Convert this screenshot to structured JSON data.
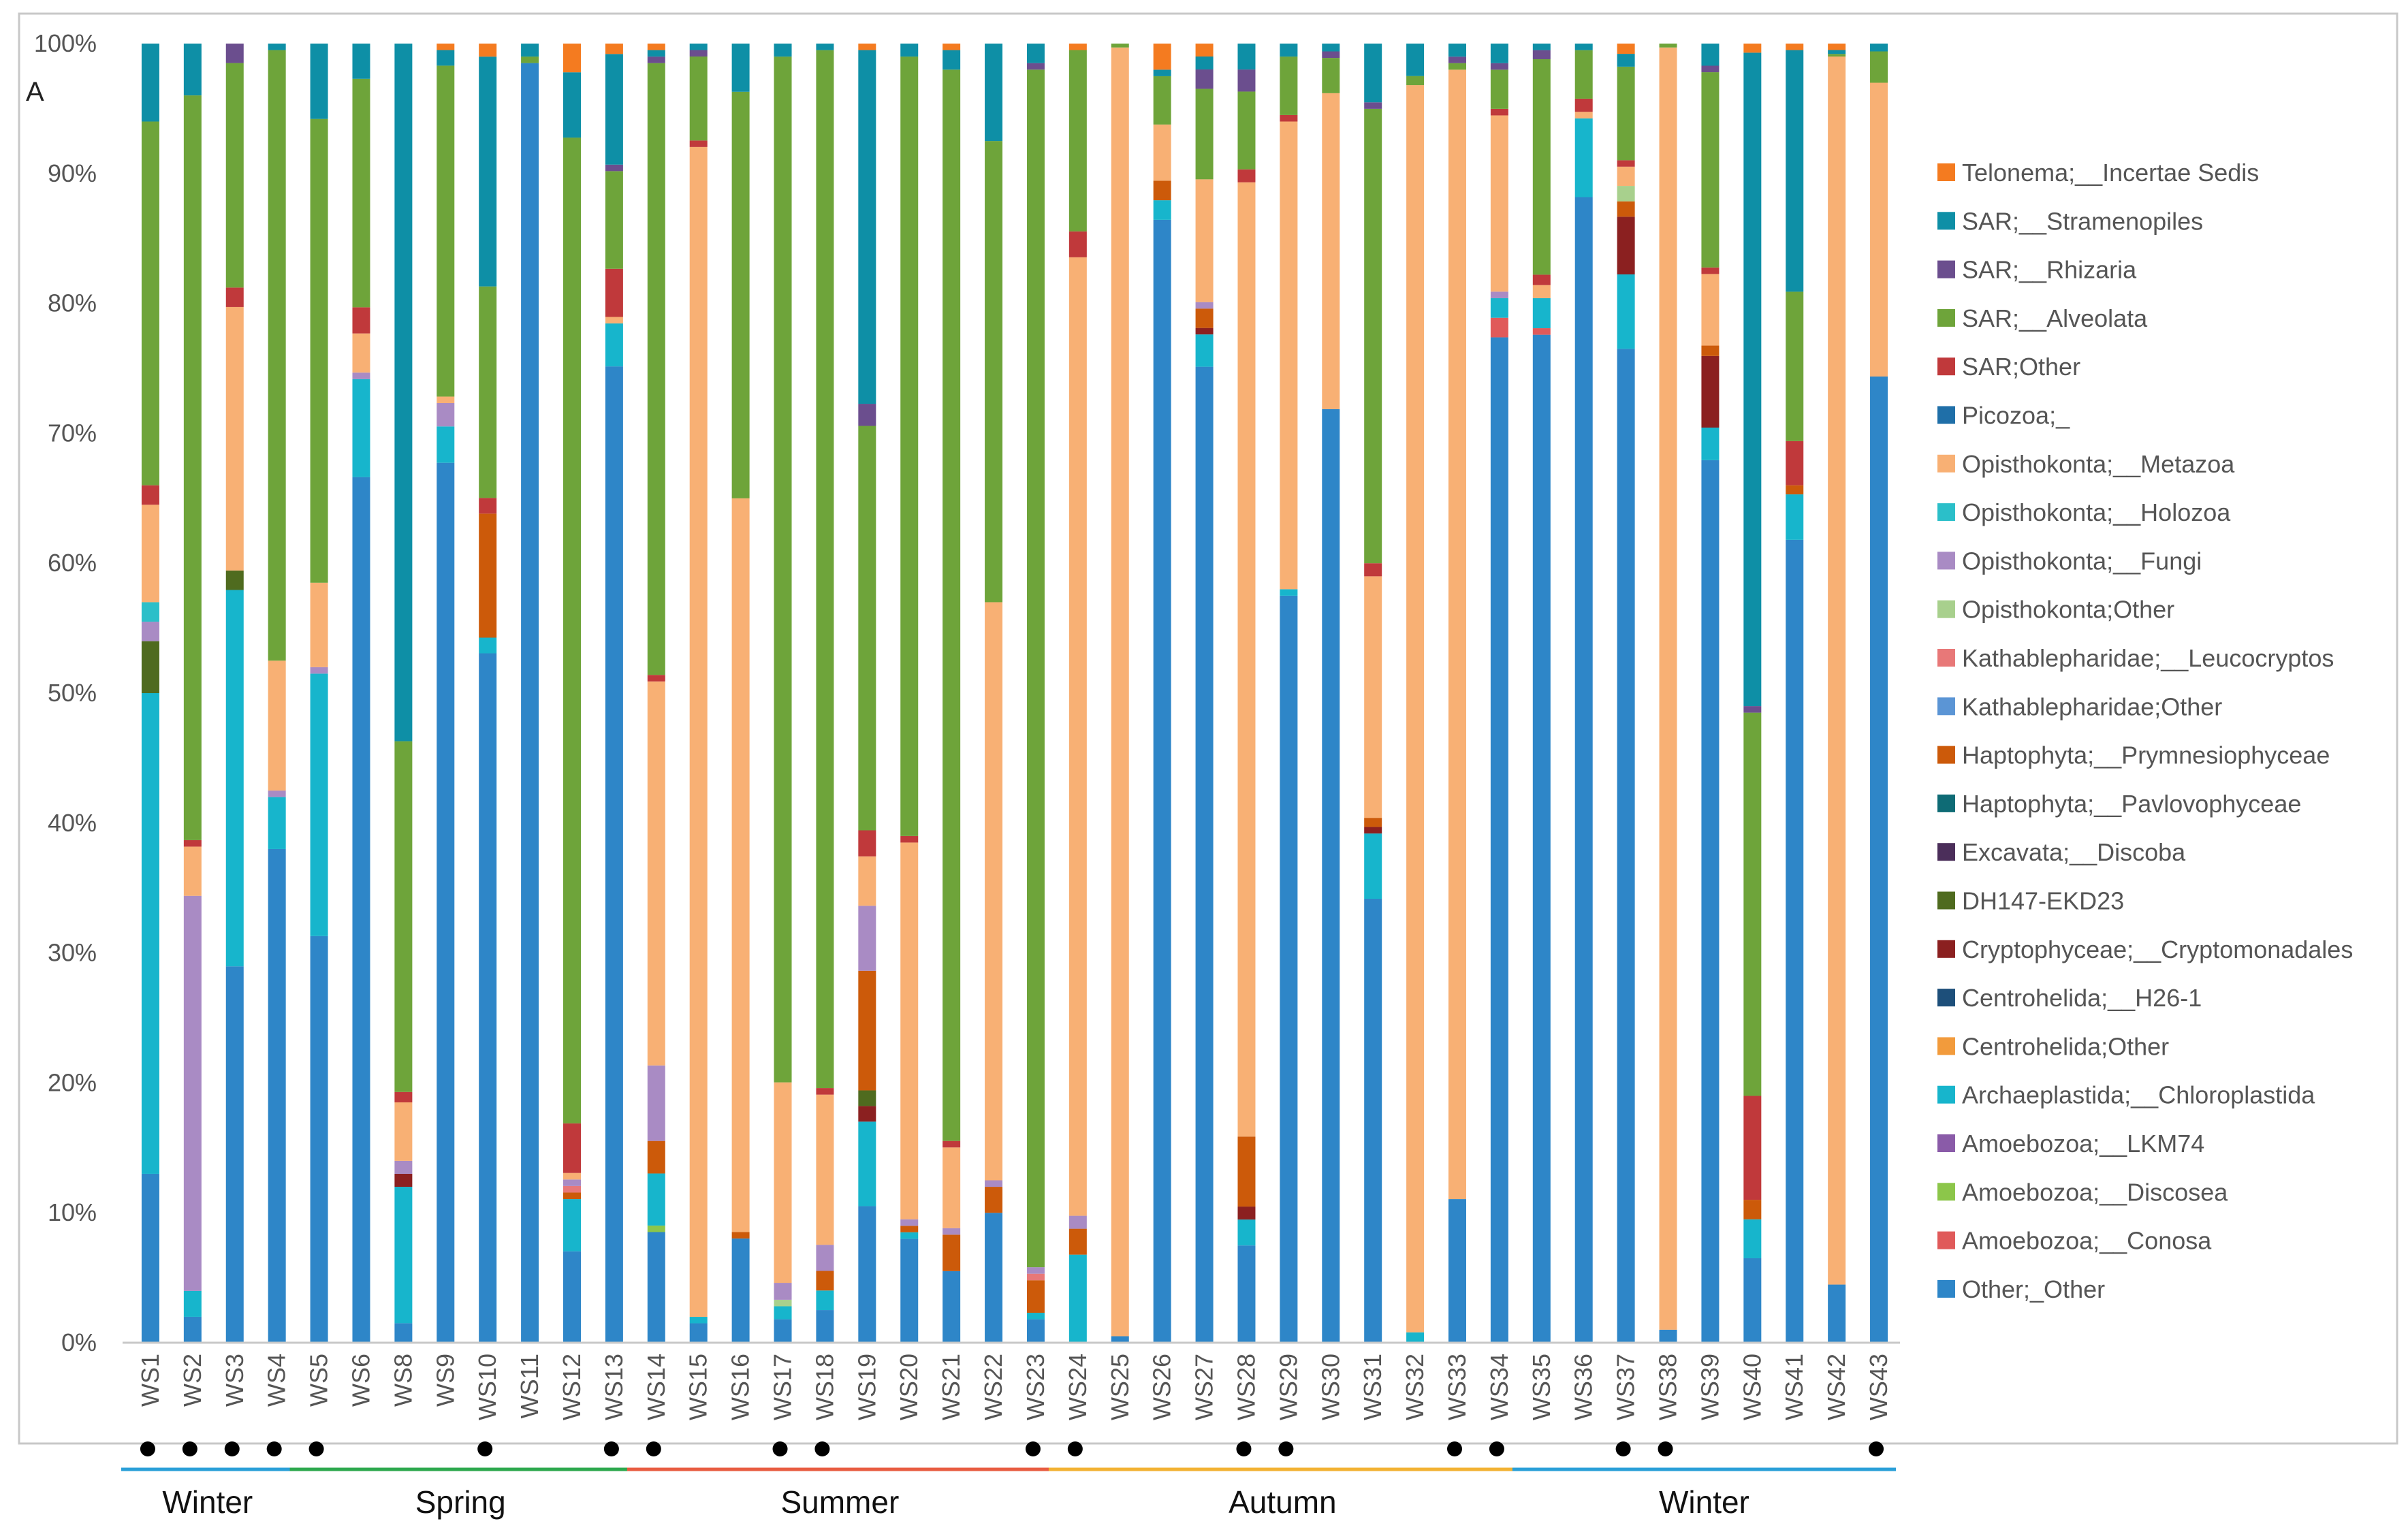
{
  "chart_data": {
    "type": "bar",
    "stacked": true,
    "percent": true,
    "panel_label": "A",
    "ylim": [
      0,
      100
    ],
    "y_ticks": [
      "0%",
      "10%",
      "20%",
      "30%",
      "40%",
      "50%",
      "60%",
      "70%",
      "80%",
      "90%",
      "100%"
    ],
    "legend_position": "right",
    "categories": [
      "WS1",
      "WS2",
      "WS3",
      "WS4",
      "WS5",
      "WS6",
      "WS8",
      "WS9",
      "WS10",
      "WS11",
      "WS12",
      "WS13",
      "WS14",
      "WS15",
      "WS16",
      "WS17",
      "WS18",
      "WS19",
      "WS20",
      "WS21",
      "WS22",
      "WS23",
      "WS24",
      "WS25",
      "WS26",
      "WS27",
      "WS28",
      "WS29",
      "WS30",
      "WS31",
      "WS32",
      "WS33",
      "WS34",
      "WS35",
      "WS36",
      "WS37",
      "WS38",
      "WS39",
      "WS40",
      "WS41",
      "WS42",
      "WS43"
    ],
    "series": [
      {
        "name": "Other;_Other",
        "color": "#2E86C8",
        "values": [
          13,
          2,
          29,
          38,
          31.3,
          66.3,
          1.5,
          67.8,
          52.8,
          98.5,
          7,
          75,
          8.5,
          1.5,
          8,
          1.8,
          2.5,
          10.5,
          8,
          5.5,
          10,
          1.8,
          0,
          0.5,
          86,
          75.5,
          7.5,
          57.5,
          71.5,
          34,
          0,
          11,
          77,
          77.2,
          87.3,
          77.5,
          1,
          67.8,
          6.5,
          61.8,
          4.5,
          74
        ]
      },
      {
        "name": "Amoebozoa;_Conosa",
        "color": "#E05A5A",
        "values": [
          0,
          0,
          0,
          0,
          0,
          0,
          0,
          0,
          0,
          0,
          0,
          0,
          0,
          0,
          0,
          0,
          0,
          0,
          0,
          0,
          0,
          0,
          0,
          0,
          0,
          0,
          0,
          0,
          0,
          0,
          0,
          0,
          1.5,
          0.5,
          0,
          0,
          0,
          0,
          0,
          0,
          0,
          0
        ]
      },
      {
        "name": "Amoebozoa;_Discosea",
        "color": "#8CC64A",
        "values": [
          0,
          0,
          0,
          0,
          0,
          0,
          0,
          0,
          0,
          0,
          0,
          0,
          0.5,
          0,
          0,
          0,
          0,
          0,
          0,
          0,
          0,
          0,
          0,
          0,
          0,
          0,
          0,
          0,
          0,
          0,
          0,
          0,
          0,
          0,
          0,
          0,
          0,
          0,
          0,
          0,
          0,
          0
        ]
      },
      {
        "name": "Amoebozoa;_LKM74",
        "color": "#8A5BA8",
        "values": [
          0,
          0,
          0,
          0,
          0,
          0,
          0,
          0,
          0,
          0,
          0,
          0,
          0,
          0,
          0,
          0,
          0,
          0,
          0,
          0,
          0,
          0,
          0,
          0,
          0,
          0,
          0,
          0,
          0,
          0,
          0,
          0,
          0,
          0,
          0,
          0,
          0,
          0,
          0,
          0,
          0,
          0
        ]
      },
      {
        "name": "Archaeplastida;_Chloroplastida",
        "color": "#17B5CC",
        "values": [
          37,
          2,
          29,
          4,
          20.2,
          7.5,
          10.5,
          2.8,
          1.2,
          0,
          4,
          3.3,
          4,
          0.5,
          0,
          1,
          1.5,
          6.5,
          0.5,
          0,
          0,
          0.5,
          6.8,
          0,
          1.5,
          2.5,
          2,
          0.5,
          0,
          5,
          0.8,
          0,
          1.5,
          2.3,
          6,
          5.8,
          0,
          2.5,
          3,
          3.5,
          0,
          0
        ]
      },
      {
        "name": "Centrohelida;Other",
        "color": "#F29B3C",
        "values": [
          0,
          0,
          0,
          0,
          0,
          0,
          0,
          0,
          0,
          0,
          0,
          0,
          0,
          0,
          0,
          0,
          0,
          0,
          0,
          0,
          0,
          0,
          0,
          0,
          0,
          0,
          0,
          0,
          0,
          0,
          0,
          0,
          0,
          0,
          0,
          0,
          0,
          0,
          0,
          0,
          0,
          0
        ]
      },
      {
        "name": "Centrohelida;_H26-1",
        "color": "#1D4F7A",
        "values": [
          0,
          0,
          0,
          0,
          0,
          0,
          0,
          0,
          0,
          0,
          0,
          0,
          0,
          0,
          0,
          0,
          0,
          0,
          0,
          0,
          0,
          0,
          0,
          0,
          0,
          0,
          0,
          0,
          0,
          0,
          0,
          0,
          0,
          0,
          0,
          0,
          0,
          0,
          0,
          0,
          0,
          0
        ]
      },
      {
        "name": "Cryptophyceae;_Cryptomonadales",
        "color": "#8B2020",
        "values": [
          0,
          0,
          0,
          0,
          0,
          0,
          1,
          0,
          0,
          0,
          0,
          0,
          0,
          0,
          0,
          0,
          0,
          1.2,
          0,
          0,
          0,
          0,
          0,
          0,
          0,
          0.5,
          1,
          0,
          0,
          0.5,
          0,
          0,
          0,
          0,
          0,
          4.5,
          0,
          5.5,
          0,
          0,
          0,
          0
        ]
      },
      {
        "name": "DH147-EKD23",
        "color": "#4F6B1F",
        "values": [
          4,
          0,
          1.5,
          0,
          0,
          0,
          0,
          0,
          0,
          0,
          0,
          0,
          0,
          0,
          0,
          0,
          0,
          1.2,
          0,
          0,
          0,
          0,
          0,
          0,
          0,
          0,
          0,
          0,
          0,
          0,
          0,
          0,
          0,
          0,
          0,
          0,
          0,
          0,
          0,
          0,
          0,
          0
        ]
      },
      {
        "name": "Excavata;_Discoba",
        "color": "#4B2E5A",
        "values": [
          0,
          0,
          0,
          0,
          0,
          0,
          0,
          0,
          0,
          0,
          0,
          0,
          0,
          0,
          0,
          0,
          0,
          0,
          0,
          0,
          0,
          0,
          0,
          0,
          0,
          0,
          0,
          0,
          0,
          0,
          0,
          0,
          0,
          0,
          0,
          0,
          0,
          0,
          0,
          0,
          0,
          0
        ]
      },
      {
        "name": "Haptophyta;_Pavlovophyceae",
        "color": "#0E6B75",
        "values": [
          0,
          0,
          0,
          0,
          0,
          0,
          0,
          0,
          0,
          0,
          0,
          0,
          0,
          0,
          0,
          0,
          0,
          0,
          0,
          0,
          0,
          0,
          0,
          0,
          0,
          0,
          0,
          0,
          0,
          0,
          0,
          0,
          0,
          0,
          0,
          0,
          0,
          0,
          0,
          0,
          0,
          0
        ]
      },
      {
        "name": "Haptophyta;_Prymnesiophyceae",
        "color": "#CC5A0A",
        "values": [
          0,
          0,
          0,
          0,
          0,
          0,
          0,
          0,
          9.5,
          0,
          0.5,
          0,
          2.5,
          0,
          0.5,
          0,
          1.5,
          9.2,
          0.5,
          2.8,
          2,
          2.5,
          2,
          0,
          1.5,
          1.5,
          5.4,
          0,
          0,
          0.7,
          0,
          0,
          0,
          0,
          0,
          1.2,
          0,
          0.8,
          1.5,
          0.7,
          0,
          0
        ]
      },
      {
        "name": "Kathablepharidae;Other",
        "color": "#5B95D5",
        "values": [
          0,
          0,
          0,
          0,
          0,
          0,
          0,
          0,
          0,
          0,
          0,
          0,
          0,
          0,
          0,
          0,
          0,
          0,
          0,
          0,
          0,
          0,
          0,
          0,
          0,
          0,
          0,
          0,
          0,
          0,
          0,
          0,
          0,
          0,
          0,
          0,
          0,
          0,
          0,
          0,
          0,
          0
        ]
      },
      {
        "name": "Kathablepharidae;_Leucocryptos",
        "color": "#E87878",
        "values": [
          0,
          0,
          0,
          0,
          0,
          0,
          0,
          0,
          0,
          0,
          0.5,
          0,
          0,
          0,
          0,
          0,
          0,
          0,
          0,
          0,
          0,
          0.5,
          0,
          0,
          0,
          0,
          0,
          0,
          0,
          0,
          0,
          0,
          0,
          0,
          0,
          0,
          0,
          0,
          0,
          0,
          0,
          0
        ]
      },
      {
        "name": "Opisthokonta;Other",
        "color": "#A8D08D",
        "values": [
          0,
          0,
          0,
          0,
          0,
          0,
          0,
          0,
          0,
          0,
          0,
          0,
          0,
          0,
          0,
          0.5,
          0,
          0,
          0,
          0,
          0,
          0,
          0,
          0,
          0,
          0,
          0,
          0,
          0,
          0,
          0,
          0,
          0,
          0,
          0,
          1.2,
          0,
          0,
          0,
          0,
          0,
          0
        ]
      },
      {
        "name": "Opisthokonta;_Fungi",
        "color": "#A98BC4",
        "values": [
          1.5,
          30.5,
          0,
          0.5,
          0.5,
          0.5,
          1,
          1.8,
          0,
          0,
          0.5,
          0,
          5.8,
          0,
          0,
          1.3,
          2,
          5,
          0.5,
          0.5,
          0.5,
          0.5,
          1,
          0,
          0,
          0.5,
          0,
          0,
          0,
          0,
          0,
          0,
          0.5,
          0,
          0,
          0,
          0,
          0,
          0,
          0,
          0,
          0
        ]
      },
      {
        "name": "Opisthokonta;_Holozoa",
        "color": "#2BBFC9",
        "values": [
          1.5,
          0,
          0,
          0,
          0,
          0,
          0,
          0,
          0,
          0,
          0,
          0,
          0,
          0,
          0,
          0,
          0,
          0,
          0,
          0,
          0,
          0,
          0,
          0,
          0,
          0,
          0,
          0,
          0,
          0,
          0,
          0,
          0,
          0,
          0,
          0,
          0,
          0,
          0,
          0,
          0,
          0
        ]
      },
      {
        "name": "Opisthokonta;_Metazoa",
        "color": "#F8B074",
        "values": [
          7.5,
          3.8,
          20.3,
          10,
          6.5,
          3,
          4.5,
          0.5,
          0,
          0,
          0.5,
          0.5,
          29.5,
          90.5,
          56.3,
          15.4,
          11.5,
          3.8,
          29,
          6.2,
          44.5,
          0,
          74,
          99.2,
          4.3,
          9.5,
          73.6,
          36,
          24.2,
          18.5,
          96,
          86.5,
          13.5,
          1,
          0.5,
          1.5,
          98.5,
          5.5,
          0,
          0,
          95,
          22.5
        ]
      },
      {
        "name": "Picozoa;_",
        "color": "#1F6FA8",
        "values": [
          0,
          0,
          0,
          0,
          0,
          0,
          0,
          0,
          0,
          0,
          0,
          0,
          0,
          0,
          0,
          0,
          0,
          0,
          0,
          0,
          0,
          0,
          0,
          0,
          0,
          0,
          0,
          0,
          0,
          0,
          0,
          0,
          0,
          0,
          0,
          0,
          0,
          0,
          0,
          0,
          0,
          0
        ]
      },
      {
        "name": "SAR;Other",
        "color": "#C0393B",
        "values": [
          1.5,
          0.5,
          1.5,
          0,
          0,
          2,
          0.8,
          0,
          1.2,
          0,
          3.8,
          3.7,
          0.5,
          0.5,
          0,
          0,
          0.5,
          2,
          0.5,
          0.5,
          0,
          0,
          2,
          0,
          0,
          0,
          1,
          0.5,
          0,
          1,
          0,
          0,
          0.5,
          0.8,
          1,
          0.5,
          0,
          0.5,
          8,
          3.4,
          0,
          0
        ]
      },
      {
        "name": "SAR;_Alveolata",
        "color": "#6EA43A",
        "values": [
          28,
          57.5,
          17.3,
          47,
          35.7,
          17.5,
          27,
          25.5,
          16.2,
          0.5,
          75.5,
          7.5,
          47,
          6.5,
          31.2,
          78.8,
          79.5,
          31.1,
          60,
          82.3,
          35.5,
          92,
          14,
          0.3,
          3.7,
          7,
          6,
          4.5,
          2.7,
          34.8,
          0.7,
          0.5,
          3,
          16.5,
          3.7,
          7.3,
          0.3,
          15,
          29.5,
          11.5,
          0.2,
          2.4
        ]
      },
      {
        "name": "SAR;_Rhizaria",
        "color": "#6B4E8E",
        "values": [
          0,
          0,
          1.5,
          0,
          0,
          0,
          0,
          0,
          0,
          0,
          0,
          0.5,
          0.5,
          0.5,
          0,
          0,
          0,
          1.7,
          0,
          0,
          0,
          0.5,
          0,
          0,
          0,
          1.5,
          1.7,
          0,
          0.5,
          0.5,
          0,
          0.5,
          0.5,
          0.7,
          0,
          0,
          0,
          0.5,
          0.5,
          0,
          0,
          0
        ]
      },
      {
        "name": "SAR;_Stramenopiles",
        "color": "#0E8FA6",
        "values": [
          6,
          4,
          0,
          0.5,
          5.8,
          2.7,
          53.7,
          1.2,
          17.6,
          1,
          5,
          8.5,
          0.5,
          0.5,
          3.7,
          1,
          0.5,
          27.2,
          1,
          1.5,
          7.5,
          1.5,
          0,
          0,
          0.5,
          1,
          2,
          1,
          0.6,
          4.5,
          2.5,
          1,
          1.5,
          0.5,
          0.5,
          1,
          0,
          1.7,
          50.3,
          18.6,
          0.3,
          0.6
        ]
      },
      {
        "name": "Telonema;_Incertae Sedis",
        "color": "#F47B20",
        "values": [
          0,
          0,
          0,
          0,
          0,
          0,
          0,
          0.5,
          1,
          0,
          2.2,
          0.8,
          0.5,
          0,
          0,
          0,
          0,
          0.5,
          0,
          0.5,
          0,
          0,
          0.5,
          0,
          2,
          1,
          0,
          0,
          0,
          0,
          0,
          0,
          0,
          0,
          0,
          0.8,
          0,
          0,
          0.7,
          0.5,
          0.5,
          0
        ]
      }
    ],
    "dots": [
      0,
      1,
      2,
      3,
      4,
      8,
      11,
      12,
      15,
      16,
      21,
      22,
      26,
      27,
      31,
      32,
      35,
      36,
      41
    ],
    "dot_symbol": "●",
    "seasons": [
      {
        "name": "Winter",
        "start": 0,
        "end": 3,
        "color": "#2A9FD8"
      },
      {
        "name": "Spring",
        "start": 4,
        "end": 11,
        "color": "#2DA84E"
      },
      {
        "name": "Summer",
        "start": 12,
        "end": 21,
        "color": "#E85C41"
      },
      {
        "name": "Autumn",
        "start": 22,
        "end": 32,
        "color": "#F2B233"
      },
      {
        "name": "Winter",
        "start": 33,
        "end": 41,
        "color": "#2A9FD8"
      }
    ],
    "legend": [
      "Telonema;_Incertae Sedis",
      "SAR;_Stramenopiles",
      "SAR;_Rhizaria",
      "SAR;_Alveolata",
      "SAR;Other",
      "Picozoa;_",
      "Opisthokonta;_Metazoa",
      "Opisthokonta;_Holozoa",
      "Opisthokonta;_Fungi",
      "Opisthokonta;Other",
      "Kathablepharidae;_Leucocryptos",
      "Kathablepharidae;Other",
      "Haptophyta;_Prymnesiophyceae",
      "Haptophyta;_Pavlovophyceae",
      "Excavata;_Discoba",
      "DH147-EKD23",
      "Cryptophyceae;_Cryptomonadales",
      "Centrohelida;_H26-1",
      "Centrohelida;Other",
      "Archaeplastida;_Chloroplastida",
      "Amoebozoa;_LKM74",
      "Amoebozoa;_Discosea",
      "Amoebozoa;_Conosa",
      "Other;_Other"
    ],
    "legend_labels": [
      "Telonema;__Incertae Sedis",
      "SAR;__Stramenopiles",
      "SAR;__Rhizaria",
      "SAR;__Alveolata",
      "SAR;Other",
      "Picozoa;_",
      "Opisthokonta;__Metazoa",
      "Opisthokonta;__Holozoa",
      "Opisthokonta;__Fungi",
      "Opisthokonta;Other",
      "Kathablepharidae;__Leucocryptos",
      "Kathablepharidae;Other",
      "Haptophyta;__Prymnesiophyceae",
      "Haptophyta;__Pavlovophyceae",
      "Excavata;__Discoba",
      "DH147-EKD23",
      "Cryptophyceae;__Cryptomonadales",
      "Centrohelida;__H26-1",
      "Centrohelida;Other",
      "Archaeplastida;__Chloroplastida",
      "Amoebozoa;__LKM74",
      "Amoebozoa;__Discosea",
      "Amoebozoa;__Conosa",
      "Other;_Other"
    ]
  }
}
